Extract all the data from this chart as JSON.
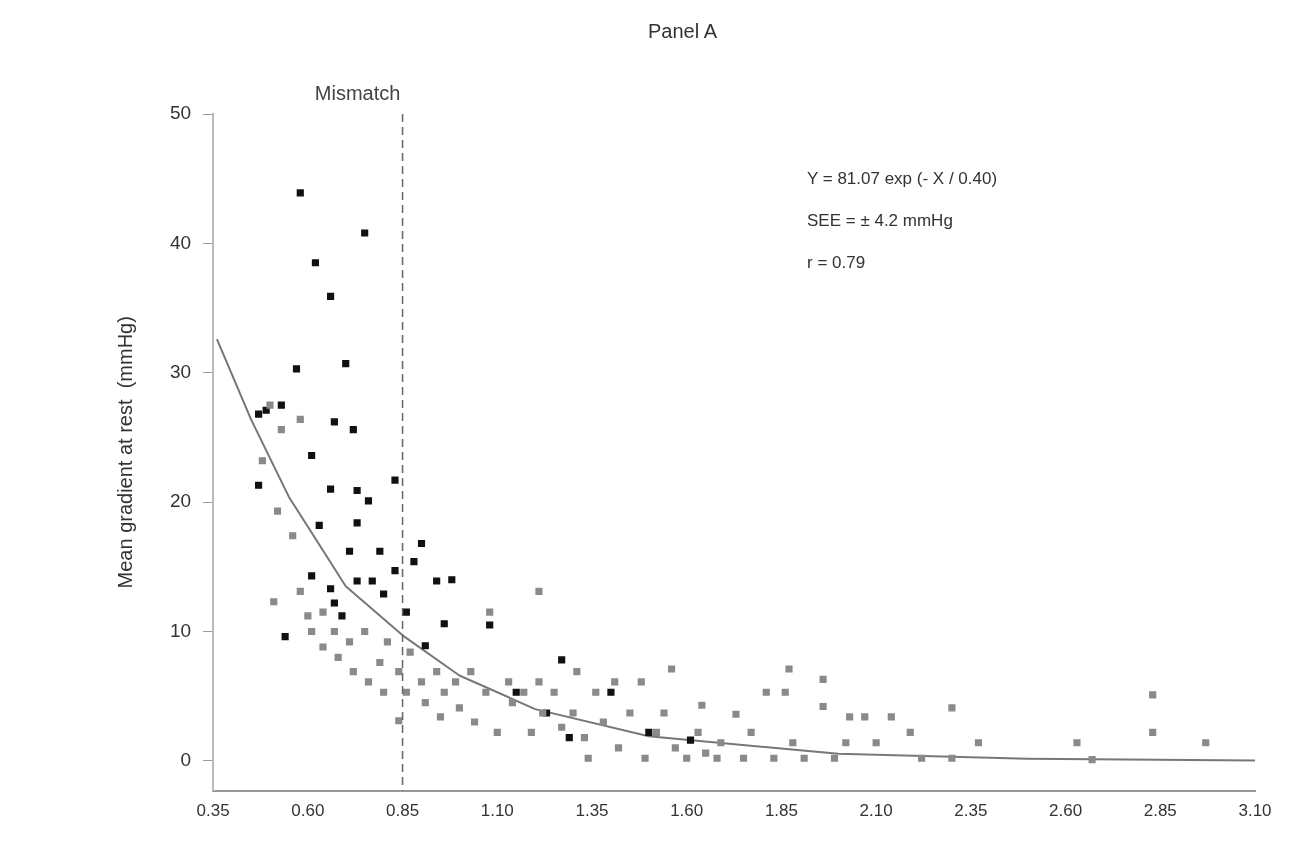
{
  "chart_data": {
    "type": "scatter",
    "title": "Panel A",
    "ylabel": "Mean gradient at rest  (mmHg)",
    "xlim": [
      0.35,
      3.1
    ],
    "xticks": [
      {
        "value": 0.35,
        "label": "0.35"
      },
      {
        "value": 0.6,
        "label": "0.60"
      },
      {
        "value": 0.85,
        "label": "0.85"
      },
      {
        "value": 1.1,
        "label": "1.10"
      },
      {
        "value": 1.35,
        "label": "1.35"
      },
      {
        "value": 1.6,
        "label": "1.60"
      },
      {
        "value": 1.85,
        "label": "1.85"
      },
      {
        "value": 2.1,
        "label": "2.10"
      },
      {
        "value": 2.35,
        "label": "2.35"
      },
      {
        "value": 2.6,
        "label": "2.60"
      },
      {
        "value": 2.85,
        "label": "2.85"
      },
      {
        "value": 3.1,
        "label": "3.10"
      }
    ],
    "ylim": [
      -2.3,
      50
    ],
    "yticks": [
      0,
      10,
      20,
      30,
      40,
      50
    ],
    "marker": "square",
    "ref_lines": [
      {
        "axis": "x",
        "value": 0.85,
        "label": "Mismatch",
        "line_style": "dashed",
        "color": "#666666"
      }
    ],
    "annotations": [
      "Y = 81.07 exp (- X / 0.40)",
      "SEE = ± 4.2 mmHg",
      "r = 0.79"
    ],
    "series": [
      {
        "type": "scatter",
        "color": "#8a8a8a",
        "x": [
          0.48,
          0.5,
          0.53,
          0.58,
          0.51,
          0.52,
          0.56,
          0.58,
          0.6,
          0.61,
          0.64,
          0.64,
          0.67,
          0.68,
          0.71,
          0.72,
          0.75,
          0.76,
          0.79,
          0.8,
          0.81,
          0.84,
          0.84,
          0.86,
          0.87,
          0.9,
          0.91,
          0.94,
          0.95,
          0.96,
          0.99,
          1.0,
          1.03,
          1.04,
          1.07,
          1.08,
          1.1,
          1.13,
          1.14,
          1.17,
          1.19,
          1.21,
          1.21,
          1.22,
          1.25,
          1.27,
          1.3,
          1.31,
          1.33,
          1.34,
          1.36,
          1.38,
          1.41,
          1.42,
          1.45,
          1.48,
          1.49,
          1.52,
          1.54,
          1.56,
          1.57,
          1.6,
          1.63,
          1.64,
          1.65,
          1.68,
          1.69,
          1.73,
          1.75,
          1.77,
          1.81,
          1.86,
          1.87,
          1.83,
          1.88,
          1.91,
          1.96,
          1.96,
          1.99,
          2.03,
          2.07,
          2.14,
          2.02,
          2.1,
          2.19,
          2.22,
          2.3,
          2.3,
          2.37,
          2.63,
          2.67,
          2.83,
          2.83,
          2.97
        ],
        "values": [
          23.2,
          27.5,
          25.6,
          26.4,
          12.3,
          19.3,
          17.4,
          13.1,
          11.2,
          10,
          11.5,
          8.8,
          10,
          8,
          9.2,
          6.9,
          10,
          6.1,
          7.6,
          5.3,
          9.2,
          6.9,
          3.1,
          5.3,
          8.4,
          6.1,
          4.5,
          6.9,
          3.4,
          5.3,
          6.1,
          4.1,
          6.9,
          3,
          5.3,
          11.5,
          2.2,
          6.1,
          4.5,
          5.3,
          2.2,
          13.1,
          6.1,
          3.7,
          5.3,
          2.6,
          3.7,
          6.9,
          1.8,
          0.2,
          5.3,
          3,
          6.1,
          1,
          3.7,
          6.1,
          0.2,
          2.2,
          3.7,
          7.1,
          1,
          0.2,
          2.2,
          4.3,
          0.6,
          0.2,
          1.4,
          3.6,
          0.2,
          2.2,
          5.3,
          5.3,
          7.1,
          0.2,
          1.4,
          0.2,
          6.3,
          4.2,
          0.2,
          3.4,
          3.4,
          3.4,
          1.4,
          1.4,
          2.2,
          0.2,
          4.1,
          0.2,
          1.4,
          1.4,
          0.1,
          5.1,
          2.2,
          1.4
        ]
      },
      {
        "type": "scatter",
        "color": "#111111",
        "x": [
          0.58,
          0.75,
          0.62,
          0.66,
          0.7,
          0.57,
          0.53,
          0.49,
          0.47,
          0.67,
          0.72,
          0.61,
          0.47,
          0.83,
          0.66,
          0.73,
          0.76,
          0.63,
          0.73,
          0.79,
          0.71,
          0.9,
          0.83,
          0.88,
          0.61,
          0.66,
          0.73,
          0.77,
          0.54,
          0.94,
          0.98,
          0.91,
          0.96,
          1.08,
          1.27,
          0.8,
          0.67,
          0.69,
          0.86,
          1.15,
          1.23,
          1.29,
          1.4,
          1.5,
          1.61
        ],
        "values": [
          43.9,
          40.8,
          38.5,
          35.9,
          30.7,
          30.3,
          27.5,
          27.1,
          26.8,
          26.2,
          25.6,
          23.6,
          21.3,
          21.7,
          21,
          20.9,
          20.1,
          18.2,
          18.4,
          16.2,
          16.2,
          16.8,
          14.7,
          15.4,
          14.3,
          13.3,
          13.9,
          13.9,
          9.6,
          13.9,
          14,
          8.9,
          10.6,
          10.5,
          7.8,
          12.9,
          12.2,
          11.2,
          11.5,
          5.3,
          3.7,
          1.8,
          5.3,
          2.2,
          1.6
        ]
      },
      {
        "type": "line",
        "color": "#777777",
        "marker": "none",
        "x": [
          0.36,
          0.45,
          0.55,
          0.7,
          0.85,
          1.0,
          1.2,
          1.5,
          2.0,
          2.5,
          3.1
        ],
        "values": [
          32.6,
          26.4,
          20.4,
          13.5,
          9.7,
          6.6,
          4.0,
          1.9,
          0.54,
          0.16,
          0.03
        ]
      }
    ]
  }
}
